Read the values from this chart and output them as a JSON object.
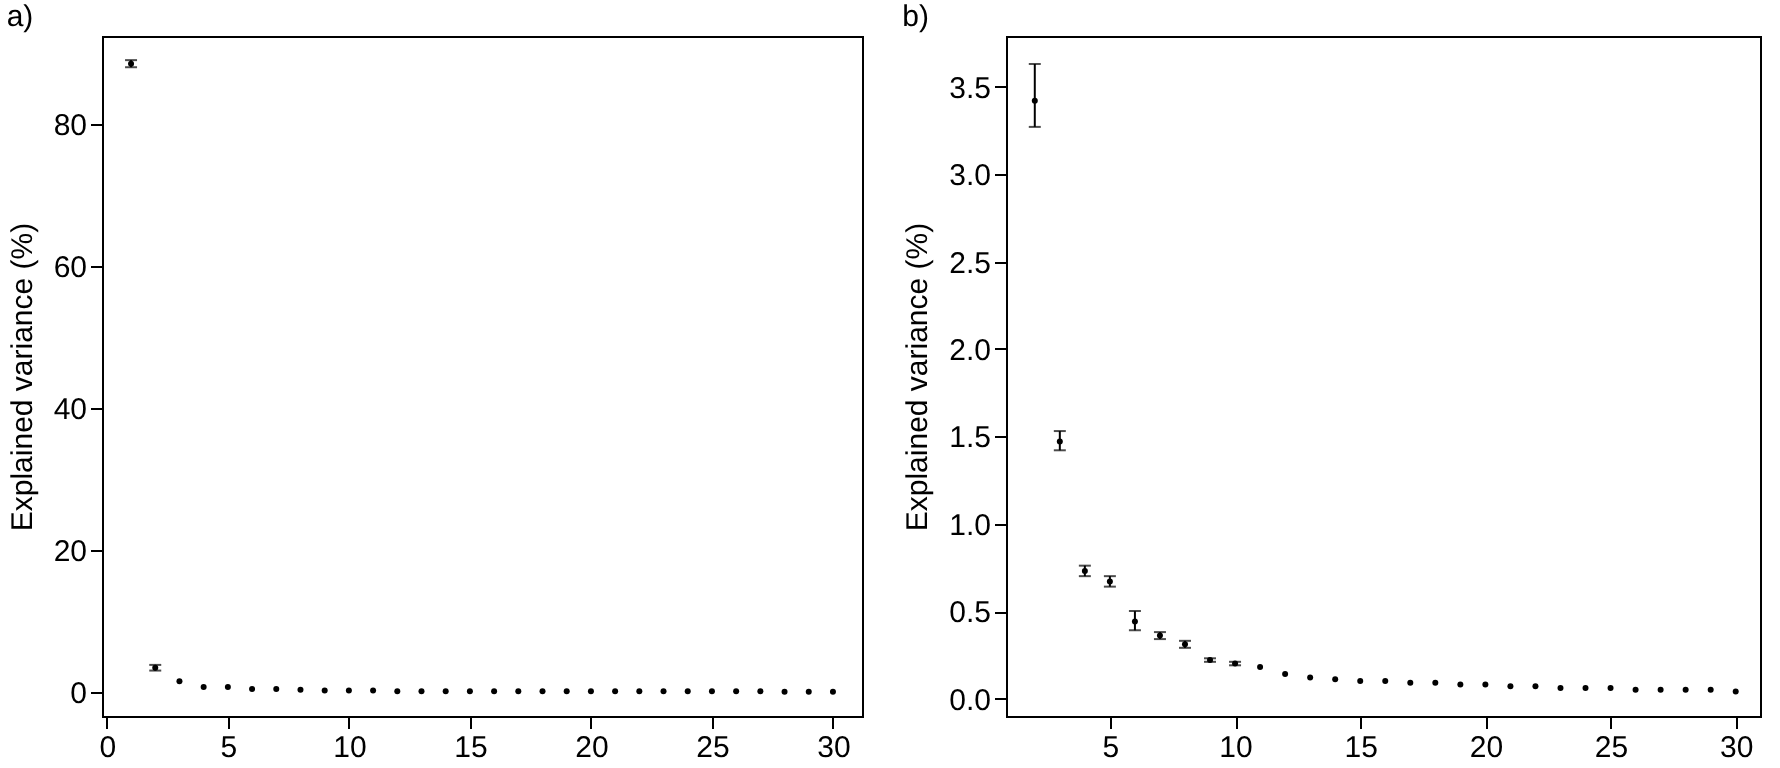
{
  "chart_data": [
    {
      "type": "scatter",
      "title": "a)",
      "ylabel": "Explained variance (%)",
      "marker": "circle",
      "grid": false,
      "x": [
        1,
        2,
        3,
        4,
        5,
        6,
        7,
        8,
        9,
        10,
        11,
        12,
        13,
        14,
        15,
        16,
        17,
        18,
        19,
        20,
        21,
        22,
        23,
        24,
        25,
        26,
        27,
        28,
        29,
        30
      ],
      "series": [
        {
          "color": "#000000",
          "values": [
            88.5,
            3.4,
            1.5,
            0.7,
            0.7,
            0.4,
            0.4,
            0.3,
            0.2,
            0.2,
            0.2,
            0.1,
            0.1,
            0.1,
            0.1,
            0.1,
            0.1,
            0.1,
            0.1,
            0.1,
            0.1,
            0.1,
            0.1,
            0.1,
            0.1,
            0.1,
            0.1,
            0,
            0,
            0
          ],
          "errors": [
            [
              88.0,
              89.0
            ],
            [
              3.0,
              3.8
            ],
            null,
            null,
            null,
            null,
            null,
            null,
            null,
            null,
            null,
            null,
            null,
            null,
            null,
            null,
            null,
            null,
            null,
            null,
            null,
            null,
            null,
            null,
            null,
            null,
            null,
            null,
            null,
            null
          ]
        }
      ],
      "xlim": [
        -0.2,
        31.2
      ],
      "xticks": [
        0,
        5,
        10,
        15,
        20,
        25,
        30
      ],
      "ylim": [
        -3.4,
        92.4
      ],
      "yticks": [
        0,
        20,
        40,
        60,
        80
      ]
    },
    {
      "type": "scatter",
      "title": "b)",
      "ylabel": "Explained variance (%)",
      "marker": "circle",
      "grid": false,
      "x": [
        2,
        3,
        4,
        5,
        6,
        7,
        8,
        9,
        10,
        11,
        12,
        13,
        14,
        15,
        16,
        17,
        18,
        19,
        20,
        21,
        22,
        23,
        24,
        25,
        26,
        27,
        28,
        29,
        30
      ],
      "series": [
        {
          "color": "#000000",
          "values": [
            3.42,
            1.47,
            0.73,
            0.67,
            0.44,
            0.36,
            0.31,
            0.22,
            0.2,
            0.18,
            0.14,
            0.12,
            0.11,
            0.1,
            0.1,
            0.09,
            0.09,
            0.08,
            0.08,
            0.07,
            0.07,
            0.06,
            0.06,
            0.06,
            0.05,
            0.05,
            0.05,
            0.05,
            0.04
          ],
          "errors": [
            [
              3.27,
              3.63
            ],
            [
              1.42,
              1.53
            ],
            [
              0.7,
              0.76
            ],
            [
              0.64,
              0.7
            ],
            [
              0.39,
              0.5
            ],
            [
              0.34,
              0.38
            ],
            [
              0.29,
              0.33
            ],
            [
              0.21,
              0.23
            ],
            [
              0.19,
              0.21
            ],
            null,
            null,
            null,
            null,
            null,
            null,
            null,
            null,
            null,
            null,
            null,
            null,
            null,
            null,
            null,
            null,
            null,
            null,
            null,
            null
          ]
        }
      ],
      "xlim": [
        0.85,
        30.97
      ],
      "xticks": [
        5,
        10,
        15,
        20,
        25,
        30
      ],
      "ylim": [
        -0.1,
        3.79
      ],
      "yticks": [
        {
          "value": 0,
          "label": "0.0"
        },
        {
          "value": 0.5,
          "label": "0.5"
        },
        {
          "value": 1,
          "label": "1.0"
        },
        {
          "value": 1.5,
          "label": "1.5"
        },
        {
          "value": 2,
          "label": "2.0"
        },
        {
          "value": 2.5,
          "label": "2.5"
        },
        {
          "value": 3,
          "label": "3.0"
        },
        {
          "value": 3.5,
          "label": "3.5"
        }
      ]
    }
  ]
}
